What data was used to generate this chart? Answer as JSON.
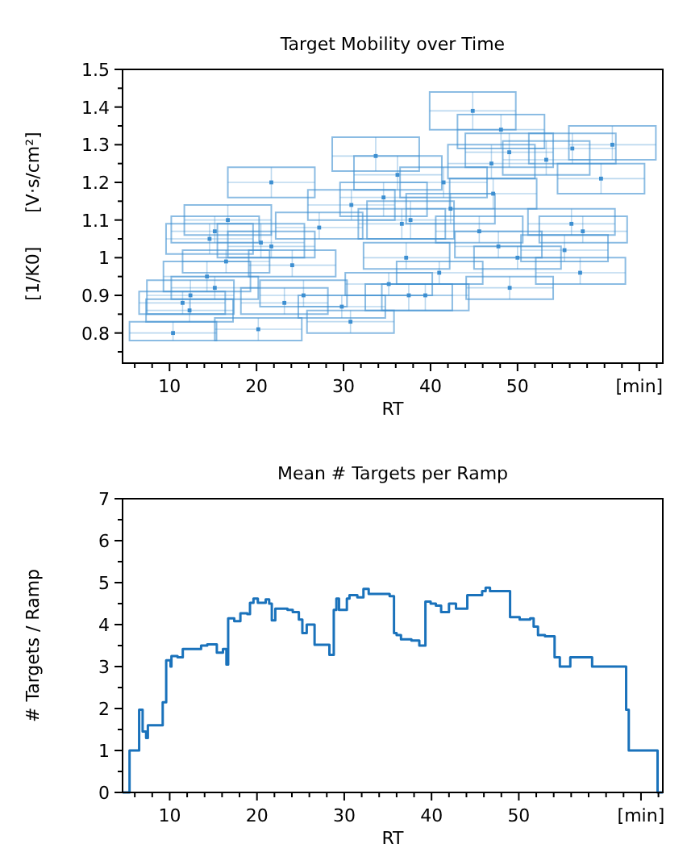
{
  "chart_data": [
    {
      "type": "scatter",
      "title": "Target Mobility over Time",
      "xlabel": "RT",
      "ylabel": "[1/K0]      [V·s/cm²]",
      "marker": "square",
      "xlim": [
        4.6,
        66.7
      ],
      "ylim": [
        0.72,
        1.5
      ],
      "xticks": [
        {
          "value": 6,
          "label": null
        },
        {
          "value": 8,
          "label": null
        },
        10,
        {
          "value": 12,
          "label": null
        },
        {
          "value": 14,
          "label": null
        },
        {
          "value": 16,
          "label": null
        },
        {
          "value": 18,
          "label": null
        },
        20,
        {
          "value": 22,
          "label": null
        },
        {
          "value": 24,
          "label": null
        },
        {
          "value": 26,
          "label": null
        },
        {
          "value": 28,
          "label": null
        },
        30,
        {
          "value": 32,
          "label": null
        },
        {
          "value": 34,
          "label": null
        },
        {
          "value": 36,
          "label": null
        },
        {
          "value": 38,
          "label": null
        },
        40,
        {
          "value": 42,
          "label": null
        },
        {
          "value": 44,
          "label": null
        },
        {
          "value": 46,
          "label": null
        },
        {
          "value": 48,
          "label": null
        },
        50,
        {
          "value": 52,
          "label": null
        },
        {
          "value": 54,
          "label": null
        },
        {
          "value": 56,
          "label": null
        },
        {
          "value": 58,
          "label": null
        },
        {
          "value": 60,
          "label": null
        },
        {
          "value": 62,
          "label": null
        },
        {
          "value": 64,
          "label": "[min]"
        },
        {
          "value": 66,
          "label": null
        }
      ],
      "yticks": [
        {
          "value": 0.75,
          "label": null
        },
        0.8,
        {
          "value": 0.85,
          "label": null
        },
        0.9,
        {
          "value": 0.95,
          "label": null
        },
        1,
        {
          "value": 1.05,
          "label": null
        },
        1.1,
        {
          "value": 1.15,
          "label": null
        },
        1.2,
        {
          "value": 1.25,
          "label": null
        },
        1.3,
        {
          "value": 1.35,
          "label": null
        },
        1.4,
        {
          "value": 1.45,
          "label": null
        },
        1.5
      ],
      "x": [
        44.85,
        48.1,
        60.9,
        56.3,
        49.05,
        53.3,
        33.7,
        47,
        36.2,
        21.7,
        59.6,
        41.5,
        34.6,
        30.9,
        47.2,
        16.7,
        15.2,
        37.7,
        42.3,
        57.5,
        56.2,
        45.6,
        36.7,
        27.2,
        21.7,
        20.5,
        14.6,
        55.4,
        47.8,
        37.2,
        50,
        24.1,
        16.5,
        57.2,
        41,
        14.3,
        49.1,
        35.2,
        15.2,
        25.4,
        39.4,
        37.5,
        29.8,
        12.4,
        11.5,
        12.3,
        20.2,
        30.8,
        10.4,
        23.2
      ],
      "series": [
        {
          "color": "#3d8fd1",
          "values": [
            1.39,
            1.34,
            1.3,
            1.29,
            1.28,
            1.26,
            1.27,
            1.25,
            1.22,
            1.2,
            1.21,
            1.2,
            1.16,
            1.14,
            1.17,
            1.1,
            1.07,
            1.1,
            1.13,
            1.07,
            1.09,
            1.07,
            1.09,
            1.08,
            1.03,
            1.04,
            1.05,
            1.02,
            1.03,
            1,
            1,
            0.98,
            0.99,
            0.96,
            0.96,
            0.95,
            0.92,
            0.93,
            0.92,
            0.9,
            0.9,
            0.9,
            0.87,
            0.9,
            0.88,
            0.86,
            0.81,
            0.83,
            0.8,
            0.88
          ],
          "xerrors": [
            [
              39.9,
              49.8
            ],
            [
              43.1,
              53.1
            ],
            [
              55.9,
              65.9
            ],
            [
              51.3,
              61.3
            ],
            [
              44.0,
              54.1
            ],
            [
              48.3,
              58.3
            ],
            [
              28.7,
              38.7
            ],
            [
              42.0,
              52.0
            ],
            [
              31.2,
              41.3
            ],
            [
              16.7,
              26.7
            ],
            [
              54.6,
              64.6
            ],
            [
              36.5,
              46.5
            ],
            [
              29.6,
              39.6
            ],
            [
              25.9,
              35.9
            ],
            [
              42.2,
              52.2
            ],
            [
              11.7,
              21.7
            ],
            [
              10.2,
              20.3
            ],
            [
              32.7,
              42.7
            ],
            [
              37.2,
              47.4
            ],
            [
              52.5,
              62.6
            ],
            [
              51.2,
              61.2
            ],
            [
              40.6,
              50.6
            ],
            [
              31.7,
              41.7
            ],
            [
              22.2,
              32.2
            ],
            [
              16.7,
              26.7
            ],
            [
              15.5,
              25.5
            ],
            [
              9.6,
              19.6
            ],
            [
              50.4,
              60.4
            ],
            [
              42.8,
              52.8
            ],
            [
              32.3,
              42.2
            ],
            [
              45.0,
              55.0
            ],
            [
              19.1,
              29.1
            ],
            [
              11.5,
              21.5
            ],
            [
              52.1,
              62.4
            ],
            [
              36.1,
              46.0
            ],
            [
              9.3,
              19.3
            ],
            [
              44.1,
              54.1
            ],
            [
              30.2,
              40.2
            ],
            [
              10.2,
              20.2
            ],
            [
              20.4,
              30.4
            ],
            [
              34.4,
              44.4
            ],
            [
              32.5,
              42.5
            ],
            [
              24.8,
              34.8
            ],
            [
              7.4,
              17.4
            ],
            [
              6.5,
              16.4
            ],
            [
              7.3,
              17.3
            ],
            [
              15.2,
              25.2
            ],
            [
              25.8,
              35.8
            ],
            [
              5.4,
              15.4
            ],
            [
              18.2,
              28.2
            ]
          ],
          "errors": [
            [
              1.34,
              1.44
            ],
            [
              1.29,
              1.38
            ],
            [
              1.26,
              1.35
            ],
            [
              1.25,
              1.33
            ],
            [
              1.24,
              1.33
            ],
            [
              1.22,
              1.31
            ],
            [
              1.23,
              1.32
            ],
            [
              1.21,
              1.3
            ],
            [
              1.18,
              1.27
            ],
            [
              1.16,
              1.24
            ],
            [
              1.17,
              1.25
            ],
            [
              1.16,
              1.24
            ],
            [
              1.11,
              1.2
            ],
            [
              1.1,
              1.18
            ],
            [
              1.13,
              1.21
            ],
            [
              1.06,
              1.14
            ],
            [
              1.04,
              1.11
            ],
            [
              1.05,
              1.15
            ],
            [
              1.09,
              1.17
            ],
            [
              1.04,
              1.11
            ],
            [
              1.06,
              1.13
            ],
            [
              1.04,
              1.11
            ],
            [
              1.05,
              1.13
            ],
            [
              1.05,
              1.12
            ],
            [
              1.0,
              1.07
            ],
            [
              1.0,
              1.09
            ],
            [
              1.01,
              1.09
            ],
            [
              0.99,
              1.06
            ],
            [
              1.0,
              1.07
            ],
            [
              0.97,
              1.04
            ],
            [
              0.97,
              1.03
            ],
            [
              0.95,
              1.02
            ],
            [
              0.96,
              1.02
            ],
            [
              0.93,
              1.0
            ],
            [
              0.93,
              0.99
            ],
            [
              0.91,
              0.99
            ],
            [
              0.89,
              0.95
            ],
            [
              0.9,
              0.96
            ],
            [
              0.89,
              0.95
            ],
            [
              0.87,
              0.94
            ],
            [
              0.86,
              0.93
            ],
            [
              0.86,
              0.93
            ],
            [
              0.84,
              0.9
            ],
            [
              0.85,
              0.94
            ],
            [
              0.85,
              0.91
            ],
            [
              0.83,
              0.89
            ],
            [
              0.78,
              0.84
            ],
            [
              0.8,
              0.86
            ],
            [
              0.78,
              0.83
            ],
            [
              0.85,
              0.92
            ]
          ]
        }
      ]
    },
    {
      "type": "step",
      "title": "Mean # Targets per Ramp",
      "xlabel": "RT",
      "ylabel": "# Targets / Ramp",
      "xlim": [
        4.6,
        66.5
      ],
      "ylim": [
        0,
        7
      ],
      "xticks": [
        {
          "value": 6,
          "label": null
        },
        {
          "value": 8,
          "label": null
        },
        10,
        {
          "value": 12,
          "label": null
        },
        {
          "value": 14,
          "label": null
        },
        {
          "value": 16,
          "label": null
        },
        {
          "value": 18,
          "label": null
        },
        20,
        {
          "value": 22,
          "label": null
        },
        {
          "value": 24,
          "label": null
        },
        {
          "value": 26,
          "label": null
        },
        {
          "value": 28,
          "label": null
        },
        30,
        {
          "value": 32,
          "label": null
        },
        {
          "value": 34,
          "label": null
        },
        {
          "value": 36,
          "label": null
        },
        {
          "value": 38,
          "label": null
        },
        40,
        {
          "value": 42,
          "label": null
        },
        {
          "value": 44,
          "label": null
        },
        {
          "value": 46,
          "label": null
        },
        {
          "value": 48,
          "label": null
        },
        50,
        {
          "value": 52,
          "label": null
        },
        {
          "value": 54,
          "label": null
        },
        {
          "value": 56,
          "label": null
        },
        {
          "value": 58,
          "label": null
        },
        {
          "value": 60,
          "label": null
        },
        {
          "value": 62,
          "label": null
        },
        {
          "value": 64,
          "label": "[min]"
        },
        {
          "value": 66,
          "label": null
        }
      ],
      "yticks": [
        0,
        {
          "value": 0.5,
          "label": null
        },
        1,
        {
          "value": 1.5,
          "label": null
        },
        2,
        {
          "value": 2.5,
          "label": null
        },
        3,
        {
          "value": 3.5,
          "label": null
        },
        4,
        {
          "value": 4.5,
          "label": null
        },
        5,
        {
          "value": 5.5,
          "label": null
        },
        6,
        {
          "value": 6.5,
          "label": null
        },
        7
      ],
      "x": [
        4.6,
        5.4,
        6.5,
        6.9,
        7.3,
        7.5,
        9.2,
        9.6,
        10.1,
        10.2,
        10.9,
        11.5,
        13.6,
        14.3,
        15.4,
        16.1,
        16.5,
        16.7,
        17.4,
        18.1,
        18.9,
        19.2,
        19.6,
        20.1,
        21.0,
        21.4,
        21.7,
        22.1,
        23.5,
        24.1,
        24.8,
        25.2,
        25.7,
        26.6,
        28.3,
        28.8,
        29.1,
        29.4,
        30.3,
        30.6,
        31.5,
        32.2,
        32.8,
        35.2,
        35.7,
        36.0,
        36.5,
        37.7,
        38.6,
        39.3,
        39.9,
        40.5,
        41.1,
        42.0,
        42.8,
        44.1,
        45.8,
        46.2,
        46.7,
        49.0,
        50.1,
        51.3,
        51.7,
        52.2,
        53.0,
        54.1,
        54.7,
        55.9,
        58.4,
        62.3,
        62.6,
        65.9,
        66.5
      ],
      "series": [
        {
          "color": "#1a72bb",
          "values": [
            0,
            1,
            1.97,
            1.45,
            1.3,
            1.6,
            2.15,
            3.15,
            3.0,
            3.25,
            3.22,
            3.42,
            3.5,
            3.53,
            3.33,
            3.42,
            3.05,
            4.15,
            4.08,
            4.27,
            4.25,
            4.52,
            4.62,
            4.52,
            4.6,
            4.5,
            4.1,
            4.38,
            4.35,
            4.3,
            4.12,
            3.8,
            4.0,
            3.52,
            3.28,
            4.35,
            4.62,
            4.35,
            4.62,
            4.7,
            4.65,
            4.85,
            4.73,
            4.68,
            3.8,
            3.75,
            3.65,
            3.62,
            3.5,
            4.55,
            4.5,
            4.45,
            4.3,
            4.5,
            4.38,
            4.7,
            4.8,
            4.88,
            4.8,
            4.18,
            4.12,
            4.15,
            3.95,
            3.75,
            3.72,
            3.22,
            3.0,
            3.22,
            3.0,
            1.97,
            1.0,
            0,
            0
          ]
        }
      ]
    }
  ]
}
